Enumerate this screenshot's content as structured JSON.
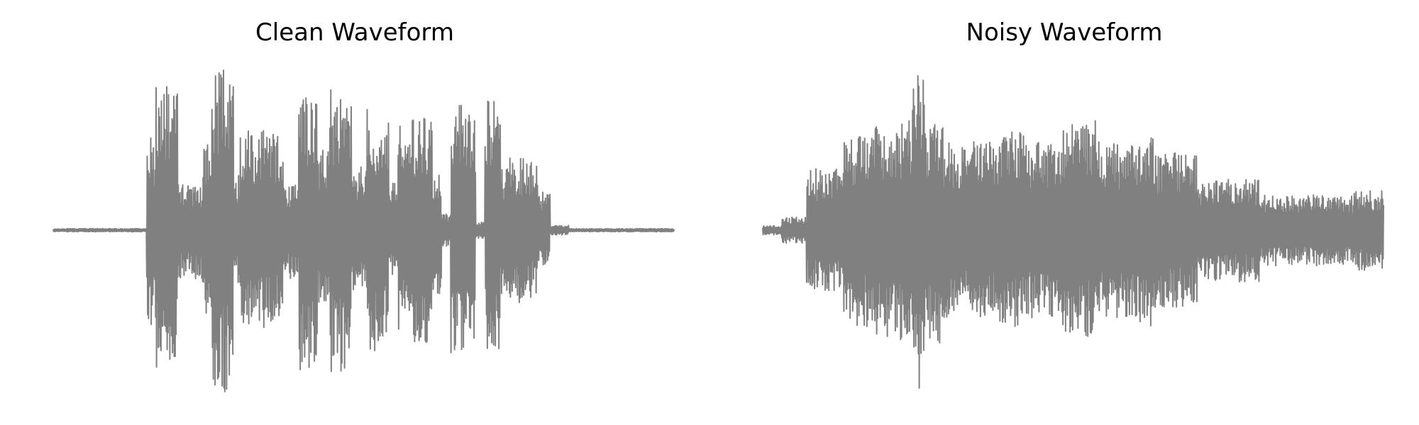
{
  "chart_data": [
    {
      "type": "line",
      "title": "Clean Waveform",
      "xlabel": "",
      "ylabel": "",
      "axes_visible": false,
      "grid": false,
      "line_color": "#808080",
      "ylim": [
        -1.0,
        1.0
      ],
      "series": [
        {
          "segments_note_x": "normalized time 0-1",
          "x_start": [
            0.0,
            0.15,
            0.165,
            0.2,
            0.24,
            0.255,
            0.29,
            0.3,
            0.35,
            0.37,
            0.38,
            0.395,
            0.425,
            0.445,
            0.48,
            0.505,
            0.54,
            0.555,
            0.575,
            0.61,
            0.625,
            0.64,
            0.68,
            0.695,
            0.72,
            0.735,
            0.76,
            0.78,
            0.8,
            0.83
          ],
          "x_end": [
            0.15,
            0.165,
            0.2,
            0.24,
            0.255,
            0.29,
            0.3,
            0.35,
            0.37,
            0.38,
            0.395,
            0.425,
            0.445,
            0.48,
            0.505,
            0.54,
            0.555,
            0.575,
            0.61,
            0.625,
            0.64,
            0.68,
            0.695,
            0.72,
            0.735,
            0.76,
            0.78,
            0.8,
            0.83,
            1.0
          ],
          "amplitude": [
            0.01,
            0.6,
            0.92,
            0.3,
            0.55,
            1.0,
            0.35,
            0.62,
            0.6,
            0.28,
            0.3,
            0.87,
            0.5,
            0.88,
            0.4,
            0.75,
            0.3,
            0.65,
            0.7,
            0.4,
            0.1,
            0.78,
            0.05,
            0.8,
            0.4,
            0.45,
            0.42,
            0.25,
            0.03,
            0.01
          ]
        }
      ]
    },
    {
      "type": "line",
      "title": "Noisy Waveform",
      "xlabel": "",
      "ylabel": "",
      "axes_visible": false,
      "grid": false,
      "line_color": "#808080",
      "ylim": [
        -1.0,
        1.0
      ],
      "series": [
        {
          "x_start": [
            0.0,
            0.03,
            0.07,
            0.13,
            0.17,
            0.24,
            0.26,
            0.29,
            0.38,
            0.42,
            0.48,
            0.54,
            0.6,
            0.63,
            0.7,
            0.8,
            0.95
          ],
          "x_end": [
            0.03,
            0.07,
            0.13,
            0.17,
            0.24,
            0.26,
            0.29,
            0.38,
            0.42,
            0.48,
            0.54,
            0.6,
            0.63,
            0.7,
            0.8,
            0.95,
            1.0
          ],
          "amplitude": [
            0.03,
            0.08,
            0.38,
            0.6,
            0.68,
            1.0,
            0.7,
            0.55,
            0.62,
            0.55,
            0.68,
            0.55,
            0.6,
            0.48,
            0.32,
            0.22,
            0.25
          ]
        }
      ]
    }
  ]
}
